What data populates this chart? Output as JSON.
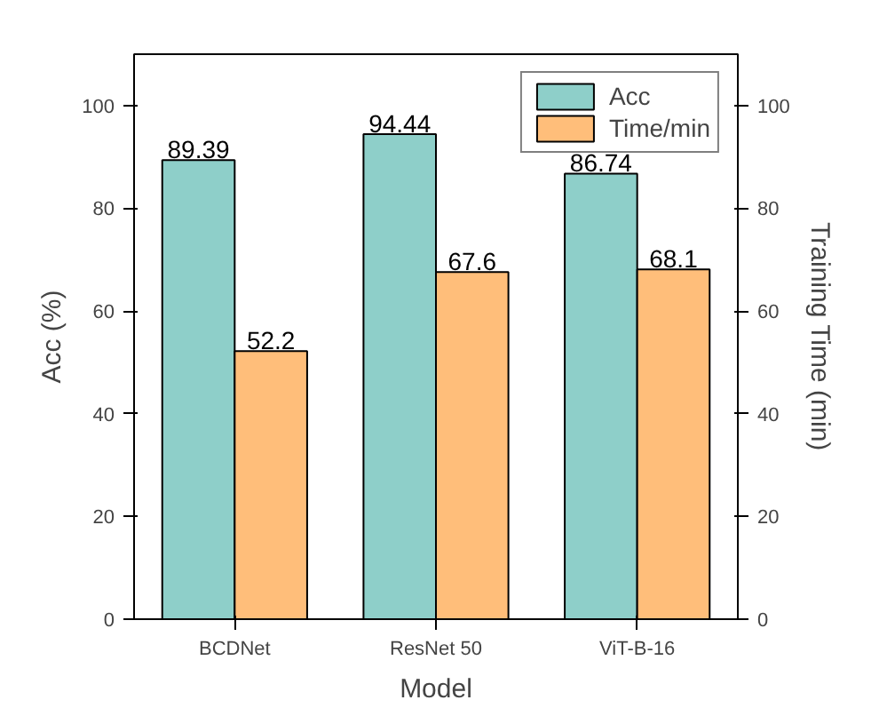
{
  "chart_data": {
    "type": "bar",
    "xlabel": "Model",
    "ylabel": "Acc (%)",
    "y2label": "Training Time (min)",
    "categories": [
      "BCDNet",
      "ResNet 50",
      "ViT-B-16"
    ],
    "series": [
      {
        "name": "Acc",
        "color": "#8ecfc9",
        "values": [
          89.39,
          94.44,
          86.74
        ]
      },
      {
        "name": "Time/min",
        "color": "#ffbe7a",
        "values": [
          52.2,
          67.6,
          68.1
        ]
      }
    ],
    "ylim": [
      0,
      110
    ],
    "yticks": [
      0,
      20,
      40,
      60,
      80,
      100
    ],
    "y2lim": [
      0,
      110
    ],
    "y2ticks": [
      0,
      20,
      40,
      60,
      80,
      100
    ],
    "data_labels": true,
    "legend": "top right",
    "grid": false
  }
}
